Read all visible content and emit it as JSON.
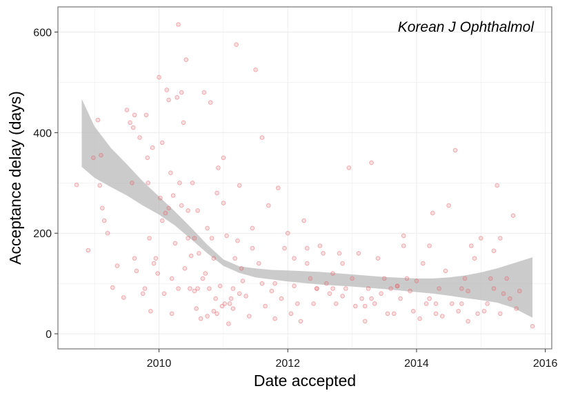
{
  "chart_data": {
    "type": "scatter",
    "title": "",
    "annotation": "Korean J Ophthalmol",
    "xlabel": "Date accepted",
    "ylabel": "Acceptance delay (days)",
    "x_unit": "year",
    "xlim": [
      2008.43,
      2016.1
    ],
    "ylim": [
      -30,
      650
    ],
    "x_ticks": [
      2010,
      2012,
      2014,
      2016
    ],
    "y_ticks": [
      0,
      200,
      400,
      600
    ],
    "x_tick_labels": [
      "2010",
      "2012",
      "2014",
      "2016"
    ],
    "y_tick_labels": [
      "0",
      "200",
      "400",
      "600"
    ],
    "grid": true,
    "legend": "none",
    "colors": {
      "points": "#e8636b",
      "band": "#bdbdbd",
      "border": "#808080",
      "grid": "#ebebeb"
    },
    "smooth_band": {
      "x": [
        2008.8,
        2009.0,
        2009.25,
        2009.5,
        2009.75,
        2010.0,
        2010.25,
        2010.5,
        2010.75,
        2011.0,
        2011.25,
        2011.5,
        2011.75,
        2012.0,
        2012.5,
        2013.0,
        2013.5,
        2014.0,
        2014.25,
        2014.5,
        2014.75,
        2015.0,
        2015.25,
        2015.5,
        2015.8
      ],
      "lower": [
        332,
        310,
        292,
        275,
        255,
        237,
        215,
        188,
        160,
        135,
        121,
        112,
        108,
        104,
        98,
        94,
        89,
        83,
        80,
        76,
        71,
        67,
        62,
        52,
        32
      ],
      "upper": [
        467,
        412,
        370,
        337,
        303,
        273,
        243,
        211,
        177,
        148,
        134,
        130,
        127,
        126,
        123,
        118,
        113,
        110,
        110,
        112,
        116,
        122,
        130,
        140,
        152
      ]
    },
    "series": [
      {
        "x": [
          2008.72,
          2008.9,
          2008.98,
          2009.05,
          2009.08,
          2009.12,
          2009.1,
          2009.15,
          2009.2,
          2009.28,
          2009.35,
          2009.45,
          2009.5,
          2009.55,
          2009.58,
          2009.6,
          2009.62,
          2009.65,
          2009.7,
          2009.75,
          2009.78,
          2009.8,
          2009.82,
          2009.85,
          2009.87,
          2009.9,
          2009.92,
          2009.95,
          2009.98,
          2010.0,
          2010.02,
          2010.05,
          2010.08,
          2010.1,
          2010.12,
          2010.15,
          2010.18,
          2010.2,
          2010.22,
          2010.25,
          2010.28,
          2010.3,
          2010.32,
          2010.35,
          2010.38,
          2010.4,
          2010.42,
          2010.45,
          2010.48,
          2010.5,
          2010.52,
          2010.55,
          2010.58,
          2010.6,
          2010.62,
          2010.65,
          2010.68,
          2010.7,
          2010.72,
          2010.75,
          2010.78,
          2010.8,
          2010.82,
          2010.85,
          2010.88,
          2010.9,
          2010.92,
          2010.95,
          2010.98,
          2011.0,
          2011.02,
          2011.05,
          2011.08,
          2011.1,
          2011.12,
          2011.15,
          2011.18,
          2011.2,
          2011.22,
          2011.25,
          2011.28,
          2011.3,
          2011.35,
          2011.4,
          2011.45,
          2011.5,
          2011.55,
          2011.6,
          2011.65,
          2011.7,
          2011.75,
          2011.8,
          2011.85,
          2011.9,
          2011.95,
          2012.0,
          2012.05,
          2012.1,
          2012.15,
          2012.2,
          2012.25,
          2012.3,
          2012.35,
          2012.4,
          2012.45,
          2012.5,
          2012.55,
          2012.6,
          2012.65,
          2012.7,
          2012.75,
          2012.8,
          2012.85,
          2012.9,
          2012.95,
          2013.0,
          2013.05,
          2013.1,
          2013.15,
          2013.2,
          2013.25,
          2013.3,
          2013.35,
          2013.4,
          2013.45,
          2013.5,
          2013.55,
          2013.6,
          2013.65,
          2013.7,
          2013.75,
          2013.8,
          2013.85,
          2013.9,
          2013.95,
          2014.0,
          2014.05,
          2014.1,
          2014.15,
          2014.2,
          2014.25,
          2014.3,
          2014.35,
          2014.4,
          2014.45,
          2014.5,
          2014.55,
          2014.6,
          2014.65,
          2014.7,
          2014.75,
          2014.8,
          2014.85,
          2014.9,
          2014.95,
          2015.0,
          2015.05,
          2015.1,
          2015.15,
          2015.2,
          2015.25,
          2015.3,
          2015.35,
          2015.4,
          2015.45,
          2015.5,
          2015.55,
          2015.6,
          2015.8,
          2009.62,
          2009.83,
          2010.05,
          2010.35,
          2010.6,
          2010.9,
          2011.25,
          2010.3,
          2010.15,
          2010.45,
          2010.75,
          2011.0,
          2011.6,
          2012.3,
          2012.7,
          2013.2,
          2013.7,
          2014.2,
          2014.7,
          2015.2,
          2010.2,
          2010.55,
          2010.85,
          2011.15,
          2011.45,
          2011.8,
          2012.1,
          2012.45,
          2012.85,
          2013.3,
          2013.8,
          2014.3,
          2014.8,
          2015.3
        ],
        "y": [
          296,
          166,
          350,
          425,
          295,
          250,
          355,
          225,
          200,
          92,
          135,
          72,
          445,
          420,
          300,
          410,
          150,
          125,
          390,
          80,
          90,
          435,
          350,
          190,
          45,
          370,
          140,
          150,
          120,
          510,
          270,
          225,
          80,
          240,
          485,
          465,
          320,
          110,
          275,
          180,
          470,
          615,
          300,
          255,
          420,
          130,
          545,
          245,
          90,
          155,
          300,
          85,
          50,
          245,
          160,
          30,
          110,
          480,
          120,
          35,
          90,
          460,
          190,
          45,
          70,
          40,
          330,
          95,
          55,
          350,
          60,
          195,
          20,
          60,
          70,
          90,
          150,
          575,
          185,
          80,
          130,
          105,
          75,
          35,
          170,
          525,
          140,
          100,
          55,
          255,
          85,
          30,
          290,
          70,
          170,
          200,
          40,
          95,
          60,
          25,
          225,
          140,
          110,
          60,
          90,
          175,
          160,
          100,
          80,
          120,
          60,
          160,
          75,
          90,
          330,
          110,
          55,
          160,
          70,
          25,
          90,
          340,
          60,
          150,
          80,
          110,
          40,
          90,
          40,
          95,
          70,
          195,
          110,
          85,
          45,
          105,
          30,
          140,
          60,
          70,
          240,
          60,
          90,
          35,
          125,
          255,
          60,
          365,
          45,
          90,
          110,
          25,
          175,
          150,
          40,
          190,
          45,
          60,
          110,
          90,
          295,
          40,
          80,
          110,
          70,
          235,
          50,
          85,
          15,
          435,
          300,
          380,
          480,
          90,
          280,
          295,
          90,
          250,
          190,
          210,
          260,
          390,
          170,
          90,
          55,
          95,
          175,
          60,
          165,
          40,
          190,
          150,
          50,
          210,
          100,
          150,
          90,
          140,
          70,
          175,
          40,
          85,
          190
        ]
      }
    ]
  }
}
